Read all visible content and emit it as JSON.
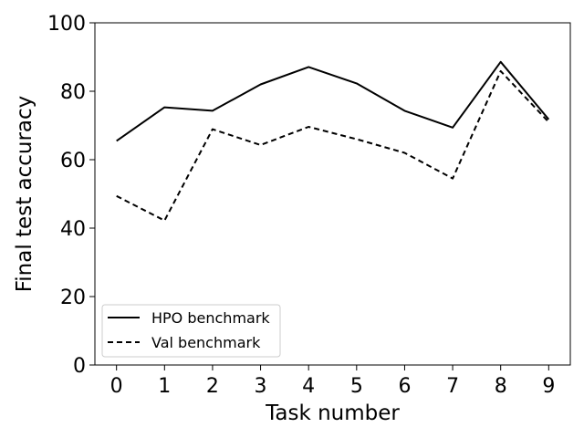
{
  "chart_data": {
    "type": "line",
    "title": "",
    "xlabel": "Task number",
    "ylabel": "Final test accuracy",
    "x": [
      0,
      1,
      2,
      3,
      4,
      5,
      6,
      7,
      8,
      9
    ],
    "xlim": [
      -0.45,
      9.45
    ],
    "ylim": [
      0,
      100
    ],
    "yticks": [
      0,
      20,
      40,
      60,
      80,
      100
    ],
    "xticks": [
      0,
      1,
      2,
      3,
      4,
      5,
      6,
      7,
      8,
      9
    ],
    "grid": false,
    "legend_position": "lower-left",
    "series": [
      {
        "name": "HPO benchmark",
        "style": "solid",
        "color": "#000000",
        "values": [
          65.5,
          75.3,
          74.3,
          82.0,
          87.1,
          82.3,
          74.3,
          69.4,
          88.6,
          71.8
        ]
      },
      {
        "name": "Val benchmark",
        "style": "dashed",
        "color": "#000000",
        "values": [
          49.4,
          42.2,
          68.9,
          64.3,
          69.6,
          66.0,
          62.0,
          54.5,
          85.9,
          71.0
        ]
      }
    ]
  }
}
